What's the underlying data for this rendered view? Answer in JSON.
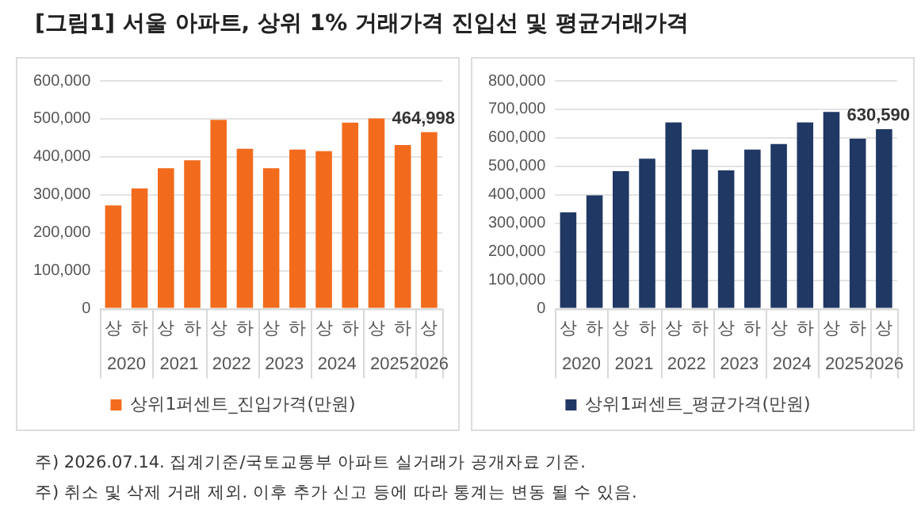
{
  "chart_data": [
    {
      "type": "other",
      "title": "[그림1] 서울 아파트, 상위 1% 거래가격 진입선 및 평균거래가격"
    },
    {
      "type": "bar",
      "categories": [
        "상",
        "하",
        "상",
        "하",
        "상",
        "하",
        "상",
        "하",
        "상",
        "하",
        "상",
        "하",
        "상"
      ],
      "series": [
        {
          "name": "상위1퍼센트_진입가격(만원)",
          "color": "#f26b1d",
          "values": [
            272000,
            317000,
            370000,
            391000,
            497000,
            421000,
            370000,
            419000,
            415000,
            490000,
            501000,
            431000,
            464998
          ],
          "value_labels": [
            null,
            null,
            null,
            null,
            null,
            null,
            null,
            null,
            null,
            null,
            null,
            null,
            "464,998"
          ]
        }
      ],
      "annotations": [
        "2020",
        "2021",
        "2022",
        "2023",
        "2024",
        "2025",
        "2026"
      ],
      "ylim": [
        0,
        600000
      ],
      "yticks": [
        {
          "value": 0,
          "label": "0"
        },
        {
          "value": 100000,
          "label": "100,000"
        },
        {
          "value": 200000,
          "label": "200,000"
        },
        {
          "value": 300000,
          "label": "300,000"
        },
        {
          "value": 400000,
          "label": "400,000"
        },
        {
          "value": 500000,
          "label": "500,000"
        },
        {
          "value": 600000,
          "label": "600,000"
        }
      ],
      "grid": "y",
      "legend": "bottom"
    },
    {
      "type": "bar",
      "categories": [
        "상",
        "하",
        "상",
        "하",
        "상",
        "하",
        "상",
        "하",
        "상",
        "하",
        "상",
        "하",
        "상"
      ],
      "series": [
        {
          "name": "상위1퍼센트_평균가격(만원)",
          "color": "#203864",
          "values": [
            338000,
            398000,
            483000,
            527000,
            654000,
            559000,
            486000,
            559000,
            578000,
            654000,
            691000,
            597000,
            630590
          ],
          "value_labels": [
            null,
            null,
            null,
            null,
            null,
            null,
            null,
            null,
            null,
            null,
            null,
            null,
            "630,590"
          ]
        }
      ],
      "annotations": [
        "2020",
        "2021",
        "2022",
        "2023",
        "2024",
        "2025",
        "2026"
      ],
      "ylim": [
        0,
        800000
      ],
      "yticks": [
        {
          "value": 0,
          "label": "0"
        },
        {
          "value": 100000,
          "label": "100,000"
        },
        {
          "value": 200000,
          "label": "200,000"
        },
        {
          "value": 300000,
          "label": "300,000"
        },
        {
          "value": 400000,
          "label": "400,000"
        },
        {
          "value": 500000,
          "label": "500,000"
        },
        {
          "value": 600000,
          "label": "600,000"
        },
        {
          "value": 700000,
          "label": "700,000"
        },
        {
          "value": 800000,
          "label": "800,000"
        }
      ],
      "grid": "y",
      "legend": "bottom"
    },
    {
      "type": "other",
      "annotations": [
        "주) 2026.07.14. 집계기준/국토교통부 아파트 실거래가 공개자료 기준.",
        "주) 취소 및 삭제 거래 제외. 이후 추가 신고 등에 따라 통계는 변동 될 수 있음."
      ]
    }
  ]
}
